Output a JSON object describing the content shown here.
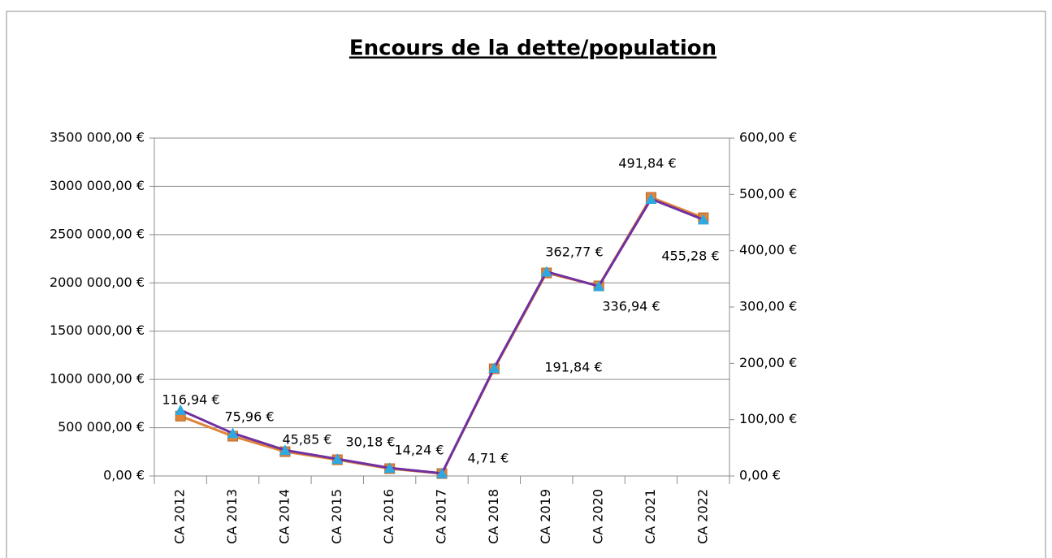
{
  "chart_data": {
    "type": "line",
    "title": "Encours de la dette/population",
    "categories": [
      "CA 2012",
      "CA 2013",
      "CA 2014",
      "CA 2015",
      "CA 2016",
      "CA 2017",
      "CA 2018",
      "CA 2019",
      "CA 2020",
      "CA 2021",
      "CA 2022"
    ],
    "series": [
      {
        "color": "#e0843a",
        "marker": "square",
        "values": [
          620000,
          412000,
          252000,
          168000,
          76000,
          25000,
          1110000,
          2103000,
          1969000,
          2886000,
          2675000
        ]
      },
      {
        "color": "#7030a0",
        "marker_color": "#2ea8e0",
        "marker": "triangle",
        "axis": "y2",
        "values": [
          116.94,
          75.96,
          45.85,
          30.18,
          14.24,
          4.71,
          191.84,
          362.77,
          336.94,
          491.84,
          455.28
        ],
        "value_labels": [
          "116,94 €",
          "75,96 €",
          "45,85 €",
          "30,18 €",
          "14,24 €",
          "4,71 €",
          "191,84 €",
          "362,77 €",
          "336,94 €",
          "491,84 €",
          "455,28 €"
        ]
      }
    ],
    "ylim": [
      0,
      3500000
    ],
    "yticks": [
      {
        "value": 0,
        "label": "0,00 €"
      },
      {
        "value": 500000,
        "label": "500 000,00 €"
      },
      {
        "value": 1000000,
        "label": "1000 000,00 €"
      },
      {
        "value": 1500000,
        "label": "1500 000,00 €"
      },
      {
        "value": 2000000,
        "label": "2000 000,00 €"
      },
      {
        "value": 2500000,
        "label": "2500 000,00 €"
      },
      {
        "value": 3000000,
        "label": "3000 000,00 €"
      },
      {
        "value": 3500000,
        "label": "3500 000,00 €"
      }
    ],
    "y2lim": [
      0,
      600
    ],
    "y2ticks": [
      {
        "value": 0,
        "label": "0,00 €"
      },
      {
        "value": 100,
        "label": "100,00 €"
      },
      {
        "value": 200,
        "label": "200,00 €"
      },
      {
        "value": 300,
        "label": "300,00 €"
      },
      {
        "value": 400,
        "label": "400,00 €"
      },
      {
        "value": 500,
        "label": "500,00 €"
      },
      {
        "value": 600,
        "label": "600,00 €"
      }
    ],
    "grid": true
  }
}
